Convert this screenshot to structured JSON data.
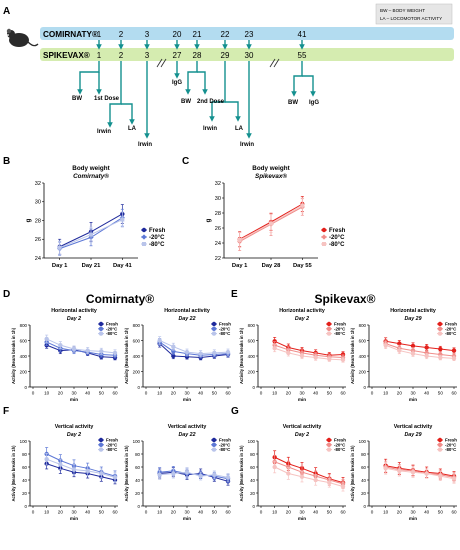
{
  "panel_letters": [
    "A",
    "B",
    "C",
    "D",
    "E",
    "F",
    "G"
  ],
  "timeline": {
    "legend_lines": [
      "BW – BODY WEIGHT",
      "LA – LOCOMOTOR ACTIVITY"
    ],
    "comirnaty_label": "COMIRNATY®",
    "spikevax_label": "SPIKEVAX®",
    "comirnaty_days": [
      "1",
      "2",
      "3",
      "20",
      "21",
      "22",
      "23",
      "41"
    ],
    "spikevax_days": [
      "1",
      "2",
      "3",
      "27",
      "28",
      "29",
      "30",
      "55"
    ],
    "events": {
      "bw1": "BW",
      "dose1": "1st Dose",
      "irwin1": "Irwin",
      "la1": "LA",
      "irwin_d3": "Irwin",
      "igg1": "IgG",
      "bw2": "BW",
      "dose2": "2nd Dose",
      "irwin2": "Irwin",
      "la2": "LA",
      "irwin_d30": "Irwin",
      "bw3": "BW",
      "igg3": "IgG"
    },
    "colors": {
      "comirnaty_bar": "#b3dcf0",
      "spikevax_bar": "#d5ecb0",
      "arrow": "#14908f"
    }
  },
  "section_titles": {
    "comirnaty": "Comirnaty®",
    "spikevax": "Spikevax®"
  },
  "chart_data": [
    {
      "panel": "B",
      "type": "line",
      "title": "Body weight",
      "subtitle": "Comirnaty®",
      "ylabel": "g",
      "ylim": [
        24,
        32
      ],
      "yticks": [
        "24",
        "26",
        "28",
        "30",
        "32"
      ],
      "categories": [
        "Day 1",
        "Day 21",
        "Day 41"
      ],
      "legend_position": "right",
      "series": [
        {
          "name": "Fresh",
          "color": "#1f2a9c",
          "marker": "circle",
          "values": [
            25.2,
            26.8,
            28.7
          ],
          "err": [
            0.8,
            1.0,
            1.0
          ]
        },
        {
          "name": "-20°C",
          "color": "#5d78d6",
          "marker": "diamond",
          "values": [
            25.0,
            26.2,
            28.3
          ],
          "err": [
            0.7,
            0.9,
            0.9
          ]
        },
        {
          "name": "-80°C",
          "color": "#b9c4ea",
          "marker": "square",
          "values": [
            25.1,
            26.5,
            28.1
          ],
          "err": [
            0.7,
            0.8,
            0.8
          ]
        }
      ]
    },
    {
      "panel": "C",
      "type": "line",
      "title": "Body weight",
      "subtitle": "Spikevax®",
      "ylabel": "g",
      "ylim": [
        22,
        32
      ],
      "yticks": [
        "22",
        "24",
        "26",
        "28",
        "30",
        "32"
      ],
      "categories": [
        "Day 1",
        "Day 28",
        "Day 55"
      ],
      "legend_position": "right",
      "series": [
        {
          "name": "Fresh",
          "color": "#e3201b",
          "marker": "circle",
          "values": [
            24.5,
            26.8,
            29.2
          ],
          "err": [
            1.0,
            1.1,
            1.0
          ]
        },
        {
          "name": "-20°C",
          "color": "#f08d8a",
          "marker": "diamond",
          "values": [
            24.2,
            26.5,
            28.8
          ],
          "err": [
            1.2,
            1.5,
            1.1
          ]
        },
        {
          "name": "-80°C",
          "color": "#f6c3c1",
          "marker": "square",
          "values": [
            24.4,
            26.6,
            29.0
          ],
          "err": [
            1.0,
            1.2,
            1.0
          ]
        }
      ]
    },
    {
      "panel": "D1",
      "type": "line",
      "title": "Horizontal activity",
      "subtitle": "Day 2",
      "ylabel": "Activity (Beam breaks in 1h)",
      "xlabel": "min",
      "ylim": [
        0,
        800
      ],
      "yticks": [
        "0",
        "200",
        "400",
        "600",
        "800"
      ],
      "x": [
        10,
        20,
        30,
        40,
        50,
        60
      ],
      "xticks": [
        "0",
        "10",
        "20",
        "30",
        "40",
        "50",
        "60"
      ],
      "legend_position": "top-right",
      "series": [
        {
          "name": "Fresh",
          "color": "#1f2a9c",
          "values": [
            540,
            470,
            480,
            440,
            390,
            380
          ],
          "err": [
            40,
            40,
            35,
            35,
            30,
            30
          ]
        },
        {
          "name": "-20°C",
          "color": "#5d78d6",
          "values": [
            580,
            500,
            470,
            450,
            420,
            410
          ],
          "err": [
            45,
            40,
            40,
            35,
            35,
            35
          ]
        },
        {
          "name": "-80°C",
          "color": "#b9c4ea",
          "values": [
            620,
            540,
            490,
            470,
            460,
            440
          ],
          "err": [
            50,
            45,
            40,
            40,
            40,
            40
          ]
        }
      ]
    },
    {
      "panel": "D2",
      "type": "line",
      "title": "Horizontal activity",
      "subtitle": "Day 22",
      "ylabel": "Activity (Beam breaks in 1h)",
      "xlabel": "min",
      "ylim": [
        0,
        800
      ],
      "yticks": [
        "0",
        "200",
        "400",
        "600",
        "800"
      ],
      "x": [
        10,
        20,
        30,
        40,
        50,
        60
      ],
      "xticks": [
        "0",
        "10",
        "20",
        "30",
        "40",
        "50",
        "60"
      ],
      "legend_position": "top-right",
      "series": [
        {
          "name": "Fresh",
          "color": "#1f2a9c",
          "values": [
            560,
            400,
            390,
            380,
            400,
            420
          ],
          "err": [
            45,
            35,
            30,
            30,
            30,
            35
          ]
        },
        {
          "name": "-20°C",
          "color": "#5d78d6",
          "values": [
            580,
            460,
            430,
            410,
            420,
            430
          ],
          "err": [
            45,
            40,
            35,
            35,
            35,
            35
          ]
        },
        {
          "name": "-80°C",
          "color": "#b9c4ea",
          "values": [
            600,
            520,
            450,
            430,
            440,
            450
          ],
          "err": [
            50,
            45,
            40,
            40,
            40,
            40
          ]
        }
      ]
    },
    {
      "panel": "E1",
      "type": "line",
      "title": "Horizontal activity",
      "subtitle": "Day 2",
      "ylabel": "Activity (Beam breaks in 1h)",
      "xlabel": "min",
      "ylim": [
        0,
        800
      ],
      "yticks": [
        "0",
        "200",
        "400",
        "600",
        "800"
      ],
      "x": [
        10,
        20,
        30,
        40,
        50,
        60
      ],
      "xticks": [
        "0",
        "10",
        "20",
        "30",
        "40",
        "50",
        "60"
      ],
      "legend_position": "top-right",
      "series": [
        {
          "name": "Fresh",
          "color": "#e3201b",
          "values": [
            590,
            510,
            470,
            440,
            410,
            420
          ],
          "err": [
            50,
            45,
            40,
            40,
            35,
            35
          ]
        },
        {
          "name": "-20°C",
          "color": "#f08d8a",
          "values": [
            540,
            480,
            440,
            410,
            390,
            380
          ],
          "err": [
            45,
            40,
            40,
            35,
            35,
            35
          ]
        },
        {
          "name": "-80°C",
          "color": "#f6c3c1",
          "values": [
            500,
            440,
            400,
            380,
            360,
            350
          ],
          "err": [
            45,
            40,
            35,
            35,
            30,
            30
          ]
        }
      ]
    },
    {
      "panel": "E2",
      "type": "line",
      "title": "Horizontal activity",
      "subtitle": "Day 29",
      "ylabel": "Activity (Beam breaks in 1h)",
      "xlabel": "min",
      "ylim": [
        0,
        800
      ],
      "yticks": [
        "0",
        "200",
        "400",
        "600",
        "800"
      ],
      "x": [
        10,
        20,
        30,
        40,
        50,
        60
      ],
      "xticks": [
        "0",
        "10",
        "20",
        "30",
        "40",
        "50",
        "60"
      ],
      "legend_position": "top-right",
      "series": [
        {
          "name": "Fresh",
          "color": "#e3201b",
          "values": [
            590,
            560,
            530,
            510,
            490,
            470
          ],
          "err": [
            45,
            40,
            40,
            40,
            35,
            35
          ]
        },
        {
          "name": "-20°C",
          "color": "#f08d8a",
          "values": [
            560,
            500,
            470,
            440,
            420,
            400
          ],
          "err": [
            45,
            40,
            40,
            35,
            35,
            35
          ]
        },
        {
          "name": "-80°C",
          "color": "#f6c3c1",
          "values": [
            540,
            470,
            430,
            400,
            380,
            370
          ],
          "err": [
            45,
            40,
            35,
            35,
            30,
            30
          ]
        }
      ]
    },
    {
      "panel": "F1",
      "type": "line",
      "title": "Vertical activity",
      "subtitle": "Day 2",
      "ylabel": "Activity (Beam breaks in 1h)",
      "xlabel": "min",
      "ylim": [
        0,
        100
      ],
      "yticks": [
        "0",
        "20",
        "40",
        "60",
        "80",
        "100"
      ],
      "x": [
        10,
        20,
        30,
        40,
        50,
        60
      ],
      "xticks": [
        "0",
        "10",
        "20",
        "30",
        "40",
        "50",
        "60"
      ],
      "legend_position": "top-right",
      "series": [
        {
          "name": "Fresh",
          "color": "#1f2a9c",
          "values": [
            65,
            58,
            52,
            50,
            45,
            40
          ],
          "err": [
            8,
            8,
            7,
            7,
            7,
            6
          ]
        },
        {
          "name": "-20°C",
          "color": "#5d78d6",
          "values": [
            80,
            70,
            62,
            58,
            52,
            46
          ],
          "err": [
            10,
            9,
            9,
            8,
            8,
            8
          ]
        },
        {
          "name": "-80°C",
          "color": "#b9c4ea",
          "values": [
            72,
            64,
            56,
            54,
            50,
            44
          ],
          "err": [
            9,
            8,
            8,
            7,
            7,
            7
          ]
        }
      ]
    },
    {
      "panel": "F2",
      "type": "line",
      "title": "Vertical activity",
      "subtitle": "Day 22",
      "ylabel": "Activity (Beam breaks in 1h)",
      "xlabel": "min",
      "ylim": [
        0,
        100
      ],
      "yticks": [
        "0",
        "20",
        "40",
        "60",
        "80",
        "100"
      ],
      "x": [
        10,
        20,
        30,
        40,
        50,
        60
      ],
      "xticks": [
        "0",
        "10",
        "20",
        "30",
        "40",
        "50",
        "60"
      ],
      "legend_position": "top-right",
      "series": [
        {
          "name": "Fresh",
          "color": "#1f2a9c",
          "values": [
            50,
            52,
            48,
            50,
            44,
            38
          ],
          "err": [
            7,
            7,
            7,
            7,
            6,
            6
          ]
        },
        {
          "name": "-20°C",
          "color": "#5d78d6",
          "values": [
            52,
            54,
            50,
            48,
            46,
            42
          ],
          "err": [
            7,
            7,
            7,
            6,
            6,
            6
          ]
        },
        {
          "name": "-80°C",
          "color": "#b9c4ea",
          "values": [
            48,
            50,
            52,
            46,
            48,
            44
          ],
          "err": [
            7,
            7,
            7,
            6,
            6,
            6
          ]
        }
      ]
    },
    {
      "panel": "G1",
      "type": "line",
      "title": "Vertical activity",
      "subtitle": "Day 2",
      "ylabel": "Activity (Beam breaks in 1h)",
      "xlabel": "min",
      "ylim": [
        0,
        100
      ],
      "yticks": [
        "0",
        "20",
        "40",
        "60",
        "80",
        "100"
      ],
      "x": [
        10,
        20,
        30,
        40,
        50,
        60
      ],
      "xticks": [
        "0",
        "10",
        "20",
        "30",
        "40",
        "50",
        "60"
      ],
      "legend_position": "top-right",
      "series": [
        {
          "name": "Fresh",
          "color": "#e3201b",
          "values": [
            75,
            65,
            58,
            50,
            42,
            36
          ],
          "err": [
            10,
            10,
            9,
            9,
            8,
            8
          ]
        },
        {
          "name": "-20°C",
          "color": "#f08d8a",
          "values": [
            68,
            60,
            52,
            46,
            40,
            34
          ],
          "err": [
            10,
            9,
            9,
            8,
            8,
            7
          ]
        },
        {
          "name": "-80°C",
          "color": "#f6c3c1",
          "values": [
            60,
            50,
            45,
            40,
            36,
            30
          ],
          "err": [
            9,
            9,
            8,
            8,
            7,
            7
          ]
        }
      ]
    },
    {
      "panel": "G2",
      "type": "line",
      "title": "Vertical activity",
      "subtitle": "Day 29",
      "ylabel": "Activity (Beam breaks in 1h)",
      "xlabel": "min",
      "ylim": [
        0,
        100
      ],
      "yticks": [
        "0",
        "20",
        "40",
        "60",
        "80",
        "100"
      ],
      "x": [
        10,
        20,
        30,
        40,
        50,
        60
      ],
      "xticks": [
        "0",
        "10",
        "20",
        "30",
        "40",
        "50",
        "60"
      ],
      "legend_position": "top-right",
      "series": [
        {
          "name": "Fresh",
          "color": "#e3201b",
          "values": [
            62,
            58,
            55,
            52,
            50,
            46
          ],
          "err": [
            10,
            9,
            8,
            8,
            7,
            7
          ]
        },
        {
          "name": "-20°C",
          "color": "#f08d8a",
          "values": [
            60,
            56,
            54,
            50,
            48,
            44
          ],
          "err": [
            9,
            8,
            8,
            7,
            7,
            7
          ]
        },
        {
          "name": "-80°C",
          "color": "#f6c3c1",
          "values": [
            58,
            54,
            52,
            50,
            46,
            42
          ],
          "err": [
            9,
            8,
            8,
            7,
            7,
            7
          ]
        }
      ]
    }
  ]
}
